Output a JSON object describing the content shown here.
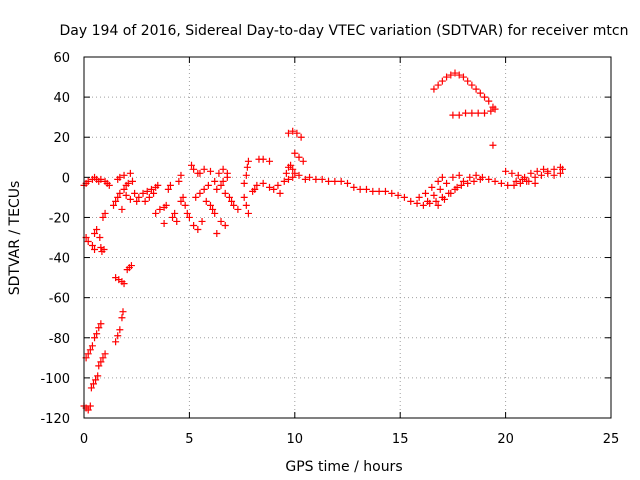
{
  "chart_data": {
    "type": "scatter",
    "title": "Day 194 of 2016, Sidereal Day-to-day VTEC variation (SDTVAR) for receiver mtcn",
    "xlabel": "GPS time / hours",
    "ylabel": "SDTVAR / TECUs",
    "xlim": [
      0,
      25
    ],
    "ylim": [
      -120,
      60
    ],
    "xticks": [
      0,
      5,
      10,
      15,
      20,
      25
    ],
    "yticks": [
      -120,
      -100,
      -80,
      -60,
      -40,
      -20,
      0,
      20,
      40,
      60
    ],
    "grid": true,
    "marker": "+",
    "color": "#ff0000",
    "series": [
      {
        "name": "SDTVAR",
        "points": [
          [
            0.0,
            -114
          ],
          [
            0.1,
            -115
          ],
          [
            0.2,
            -116
          ],
          [
            0.3,
            -114
          ],
          [
            0.1,
            -30
          ],
          [
            0.2,
            -32
          ],
          [
            0.4,
            -34
          ],
          [
            0.5,
            -36
          ],
          [
            0.1,
            -90
          ],
          [
            0.2,
            -88
          ],
          [
            0.3,
            -86
          ],
          [
            0.4,
            -84
          ],
          [
            0.35,
            -105
          ],
          [
            0.45,
            -103
          ],
          [
            0.55,
            -101
          ],
          [
            0.65,
            -99
          ],
          [
            0.5,
            -80
          ],
          [
            0.6,
            -78
          ],
          [
            0.7,
            -75
          ],
          [
            0.8,
            -73
          ],
          [
            0.7,
            -94
          ],
          [
            0.8,
            -92
          ],
          [
            0.9,
            -90
          ],
          [
            1.0,
            -88
          ],
          [
            0.5,
            -28
          ],
          [
            0.6,
            -26
          ],
          [
            0.75,
            -30
          ],
          [
            0.8,
            -35
          ],
          [
            0.85,
            -37
          ],
          [
            0.95,
            -36
          ],
          [
            0.9,
            -20
          ],
          [
            1.0,
            -18
          ],
          [
            0.0,
            -4
          ],
          [
            0.1,
            -3
          ],
          [
            0.2,
            -2
          ],
          [
            0.4,
            -1
          ],
          [
            0.5,
            0
          ],
          [
            0.6,
            -1
          ],
          [
            0.7,
            -2
          ],
          [
            0.8,
            -1
          ],
          [
            1.0,
            -2
          ],
          [
            1.1,
            -3
          ],
          [
            1.2,
            -4
          ],
          [
            1.5,
            -82
          ],
          [
            1.6,
            -79
          ],
          [
            1.7,
            -76
          ],
          [
            1.8,
            -70
          ],
          [
            1.85,
            -67
          ],
          [
            1.5,
            -50
          ],
          [
            1.65,
            -51
          ],
          [
            1.8,
            -52
          ],
          [
            1.9,
            -53
          ],
          [
            2.05,
            -46
          ],
          [
            2.15,
            -45
          ],
          [
            2.25,
            -44
          ],
          [
            1.4,
            -14
          ],
          [
            1.5,
            -12
          ],
          [
            1.6,
            -10
          ],
          [
            1.7,
            -8
          ],
          [
            1.8,
            -16
          ],
          [
            1.9,
            -6
          ],
          [
            2.0,
            -4
          ],
          [
            2.1,
            -3
          ],
          [
            1.6,
            -1
          ],
          [
            1.7,
            0
          ],
          [
            1.9,
            1
          ],
          [
            2.2,
            2
          ],
          [
            2.3,
            -2
          ],
          [
            2.0,
            -9
          ],
          [
            2.2,
            -11
          ],
          [
            2.4,
            -8
          ],
          [
            2.5,
            -12
          ],
          [
            2.6,
            -10
          ],
          [
            2.8,
            -8
          ],
          [
            3.0,
            -7
          ],
          [
            3.2,
            -6
          ],
          [
            3.4,
            -5
          ],
          [
            2.9,
            -12
          ],
          [
            3.1,
            -10
          ],
          [
            3.3,
            -8
          ],
          [
            3.5,
            -4
          ],
          [
            3.4,
            -18
          ],
          [
            3.6,
            -16
          ],
          [
            3.8,
            -15
          ],
          [
            3.9,
            -14
          ],
          [
            4.0,
            -6
          ],
          [
            4.1,
            -4
          ],
          [
            4.2,
            -20
          ],
          [
            4.3,
            -18
          ],
          [
            4.4,
            -22
          ],
          [
            3.8,
            -23
          ],
          [
            4.6,
            -12
          ],
          [
            4.7,
            -10
          ],
          [
            4.8,
            -14
          ],
          [
            4.9,
            -18
          ],
          [
            4.5,
            -2
          ],
          [
            4.6,
            1
          ],
          [
            5.0,
            -20
          ],
          [
            5.2,
            -24
          ],
          [
            5.4,
            -26
          ],
          [
            5.6,
            -22
          ],
          [
            5.3,
            -10
          ],
          [
            5.5,
            -8
          ],
          [
            5.7,
            -6
          ],
          [
            5.9,
            -4
          ],
          [
            5.5,
            2
          ],
          [
            5.7,
            4
          ],
          [
            6.0,
            3
          ],
          [
            6.2,
            -2
          ],
          [
            5.1,
            6
          ],
          [
            5.2,
            4
          ],
          [
            5.4,
            2
          ],
          [
            5.8,
            -12
          ],
          [
            6.0,
            -14
          ],
          [
            6.1,
            -16
          ],
          [
            6.2,
            -18
          ],
          [
            6.5,
            -22
          ],
          [
            6.7,
            -24
          ],
          [
            6.3,
            -28
          ],
          [
            6.3,
            -6
          ],
          [
            6.5,
            -4
          ],
          [
            6.6,
            -2
          ],
          [
            6.8,
            0
          ],
          [
            6.7,
            -8
          ],
          [
            6.9,
            -10
          ],
          [
            7.0,
            -12
          ],
          [
            6.4,
            2
          ],
          [
            6.6,
            4
          ],
          [
            6.8,
            2
          ],
          [
            7.1,
            -14
          ],
          [
            7.3,
            -16
          ],
          [
            7.6,
            -10
          ],
          [
            7.7,
            -14
          ],
          [
            7.8,
            -18
          ],
          [
            7.6,
            -3
          ],
          [
            7.7,
            1
          ],
          [
            7.75,
            5
          ],
          [
            7.8,
            8
          ],
          [
            8.0,
            -7
          ],
          [
            8.1,
            -6
          ],
          [
            8.2,
            -4
          ],
          [
            8.5,
            -3
          ],
          [
            8.8,
            -5
          ],
          [
            8.3,
            9
          ],
          [
            8.5,
            9
          ],
          [
            8.8,
            8
          ],
          [
            9.0,
            -6
          ],
          [
            9.2,
            -4
          ],
          [
            9.3,
            -8
          ],
          [
            9.5,
            -2
          ],
          [
            9.6,
            2
          ],
          [
            9.7,
            5
          ],
          [
            9.8,
            6
          ],
          [
            9.9,
            4
          ],
          [
            9.7,
            -1
          ],
          [
            9.9,
            0
          ],
          [
            10.0,
            2
          ],
          [
            10.2,
            1
          ],
          [
            9.7,
            22
          ],
          [
            9.9,
            23
          ],
          [
            10.1,
            22
          ],
          [
            10.3,
            20
          ],
          [
            10.0,
            12
          ],
          [
            10.2,
            10
          ],
          [
            10.4,
            8
          ],
          [
            10.5,
            -1
          ],
          [
            10.7,
            0
          ],
          [
            11.0,
            -1
          ],
          [
            11.3,
            -1
          ],
          [
            11.6,
            -2
          ],
          [
            11.9,
            -2
          ],
          [
            12.2,
            -2
          ],
          [
            12.5,
            -3
          ],
          [
            12.8,
            -5
          ],
          [
            13.1,
            -6
          ],
          [
            13.4,
            -6
          ],
          [
            13.7,
            -7
          ],
          [
            14.0,
            -7
          ],
          [
            14.3,
            -7
          ],
          [
            14.6,
            -8
          ],
          [
            14.9,
            -9
          ],
          [
            15.2,
            -10
          ],
          [
            15.5,
            -12
          ],
          [
            15.8,
            -13
          ],
          [
            16.1,
            -14
          ],
          [
            16.4,
            -13
          ],
          [
            16.7,
            -12
          ],
          [
            17.0,
            -10
          ],
          [
            17.3,
            -8
          ],
          [
            17.6,
            -6
          ],
          [
            17.9,
            -4
          ],
          [
            18.2,
            -3
          ],
          [
            18.5,
            -2
          ],
          [
            18.8,
            -1
          ],
          [
            15.9,
            -10
          ],
          [
            16.2,
            -8
          ],
          [
            16.5,
            -5
          ],
          [
            16.8,
            -2
          ],
          [
            17.0,
            0
          ],
          [
            16.3,
            -12
          ],
          [
            16.6,
            -9
          ],
          [
            16.9,
            -6
          ],
          [
            17.2,
            -3
          ],
          [
            17.5,
            0
          ],
          [
            17.8,
            1
          ],
          [
            16.8,
            -14
          ],
          [
            17.1,
            -11
          ],
          [
            17.4,
            -8
          ],
          [
            17.7,
            -5
          ],
          [
            18.0,
            -2
          ],
          [
            18.3,
            0
          ],
          [
            18.6,
            1
          ],
          [
            18.9,
            0
          ],
          [
            19.2,
            -1
          ],
          [
            19.5,
            -2
          ],
          [
            19.8,
            -3
          ],
          [
            20.1,
            -4
          ],
          [
            20.4,
            -4
          ],
          [
            20.7,
            -3
          ],
          [
            21.0,
            -2
          ],
          [
            20.0,
            3
          ],
          [
            20.3,
            2
          ],
          [
            20.6,
            1
          ],
          [
            20.9,
            0
          ],
          [
            21.2,
            2
          ],
          [
            21.5,
            3
          ],
          [
            21.8,
            4
          ],
          [
            22.0,
            3
          ],
          [
            22.3,
            4
          ],
          [
            22.6,
            5
          ],
          [
            22.7,
            4
          ],
          [
            21.4,
            0
          ],
          [
            21.7,
            1
          ],
          [
            22.0,
            2
          ],
          [
            22.3,
            1
          ],
          [
            22.6,
            2
          ],
          [
            20.5,
            -2
          ],
          [
            20.8,
            -1
          ],
          [
            21.1,
            -2
          ],
          [
            21.4,
            -3
          ],
          [
            19.4,
            16
          ],
          [
            16.6,
            44
          ],
          [
            16.8,
            46
          ],
          [
            17.0,
            48
          ],
          [
            17.2,
            50
          ],
          [
            17.4,
            51
          ],
          [
            17.6,
            52
          ],
          [
            17.8,
            51
          ],
          [
            18.0,
            50
          ],
          [
            18.2,
            48
          ],
          [
            18.4,
            46
          ],
          [
            18.6,
            44
          ],
          [
            18.8,
            42
          ],
          [
            19.0,
            40
          ],
          [
            19.2,
            38
          ],
          [
            19.4,
            35
          ],
          [
            19.5,
            34
          ],
          [
            19.3,
            33
          ],
          [
            19.0,
            32
          ],
          [
            18.7,
            32
          ],
          [
            18.4,
            32
          ],
          [
            18.1,
            32
          ],
          [
            17.8,
            31
          ],
          [
            17.5,
            31
          ]
        ]
      }
    ]
  }
}
